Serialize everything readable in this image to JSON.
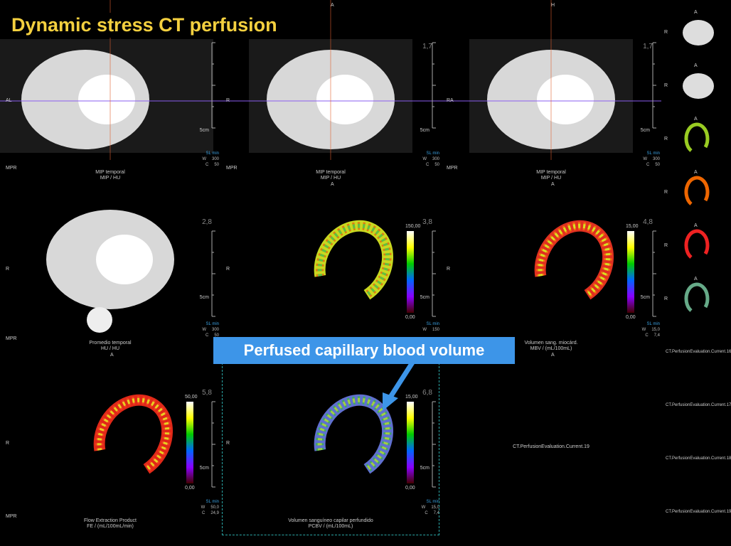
{
  "title": "Dynamic stress CT perfusion",
  "callout": "Perfused capillary blood volume",
  "viewports": [
    {
      "left": "AL",
      "corner": "MPR",
      "scale": "5cm",
      "sl": "SL min",
      "wl": [
        [
          "W",
          "300"
        ],
        [
          "C",
          "50"
        ]
      ],
      "caption": [
        "MIP temporal",
        "MIP / HU"
      ]
    },
    {
      "top": "A",
      "left": "R",
      "bottom": "A",
      "index": "1,7",
      "corner": "MPR",
      "scale": "5cm",
      "sl": "SL min",
      "wl": [
        [
          "W",
          "300"
        ],
        [
          "C",
          "50"
        ]
      ],
      "caption": [
        "MIP temporal",
        "MIP / HU"
      ]
    },
    {
      "top": "H",
      "left": "RA",
      "bottom": "A",
      "index": "1,7",
      "corner": "MPR",
      "scale": "5cm",
      "sl": "SL min",
      "wl": [
        [
          "W",
          "300"
        ],
        [
          "C",
          "50"
        ]
      ],
      "caption": [
        "MIP temporal",
        "MIP / HU"
      ]
    },
    {
      "left": "R",
      "bottom": "A",
      "index": "2,8",
      "corner": "MPR",
      "scale": "5cm",
      "sl": "SL min",
      "wl": [
        [
          "W",
          "300"
        ],
        [
          "C",
          "50"
        ]
      ],
      "caption": [
        "Promedio temporal",
        "HU / HU"
      ]
    },
    {
      "left": "R",
      "index": "3,8",
      "scale": "5cm",
      "sl": "SL min",
      "wl": [
        [
          "W",
          "150"
        ]
      ],
      "bar": [
        "150,00",
        "0,00"
      ]
    },
    {
      "left": "R",
      "bottom": "A",
      "index": "4,8",
      "scale": "5cm",
      "sl": "SL min",
      "wl": [
        [
          "W",
          "15,0"
        ],
        [
          "C",
          "7,4"
        ]
      ],
      "caption": [
        "Volumen sang. miocárd.",
        "MBV / (mL/100mL)"
      ],
      "bar": [
        "15,00",
        "0,00"
      ]
    },
    {
      "left": "R",
      "index": "5,8",
      "corner": "MPR",
      "scale": "5cm",
      "sl": "SL min",
      "wl": [
        [
          "W",
          "50,0"
        ],
        [
          "C",
          "24,9"
        ]
      ],
      "caption": [
        "Flow Extraction Product",
        "FE / (mL/100mL/min)"
      ],
      "bar": [
        "50,00",
        "0,00"
      ]
    },
    {
      "left": "R",
      "index": "6,8",
      "scale": "5cm",
      "sl": "SL min",
      "wl": [
        [
          "W",
          "15,0"
        ],
        [
          "C",
          "7,4"
        ]
      ],
      "caption": [
        "Volumen sanguíneo capilar perfundido",
        "PCBV / (mL/100mL)"
      ],
      "bar": [
        "15,00",
        "0,00"
      ]
    },
    {
      "caption": [
        "CT.PerfusionEvaluation.Current.19"
      ]
    }
  ],
  "thumbnails": [
    {
      "top": "A",
      "left": "R"
    },
    {
      "top": "A",
      "left": "R"
    },
    {
      "top": "A",
      "left": "R"
    },
    {
      "top": "A",
      "left": "R"
    },
    {
      "top": "A",
      "left": "R"
    },
    {
      "top": "A",
      "left": "R"
    }
  ],
  "series_labels": [
    "CT.PerfusionEvaluation.Current.16",
    "CT.PerfusionEvaluation.Current.17",
    "CT.PerfusionEvaluation.Current.18",
    "CT.PerfusionEvaluation.Current.19"
  ]
}
